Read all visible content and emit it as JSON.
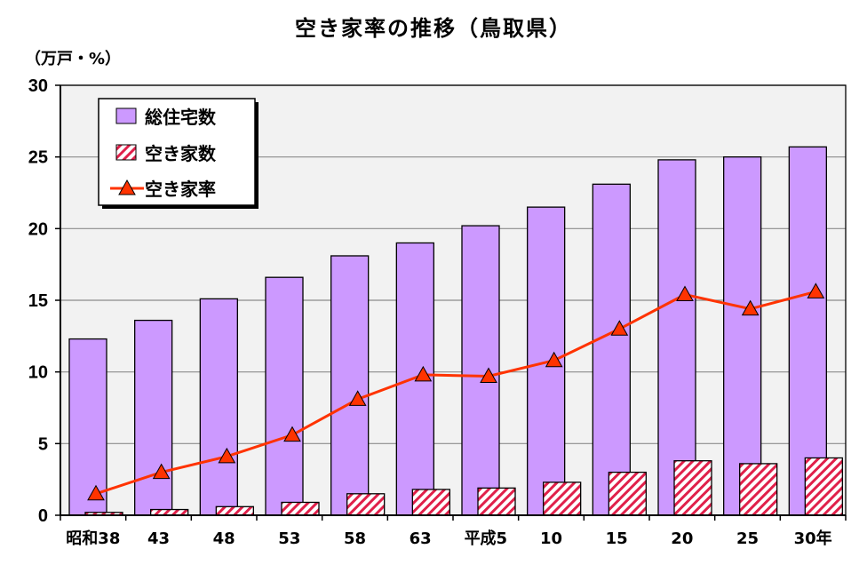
{
  "chart_data": {
    "type": "bar",
    "title": "空き家率の推移（鳥取県）",
    "ylabel": "（万戸・%）",
    "xlabel": "",
    "ylim": [
      0,
      30
    ],
    "yticks": [
      0,
      5,
      10,
      15,
      20,
      25,
      30
    ],
    "grid": true,
    "legend_position": "top-left",
    "categories": [
      "昭和38",
      "43",
      "48",
      "53",
      "58",
      "63",
      "平成5",
      "10",
      "15",
      "20",
      "25",
      "30年"
    ],
    "series": [
      {
        "name": "総住宅数",
        "type": "bar",
        "color": "#cc99ff",
        "values": [
          12.3,
          13.6,
          15.1,
          16.6,
          18.1,
          19.0,
          20.2,
          21.5,
          23.1,
          24.8,
          25.0,
          25.7
        ]
      },
      {
        "name": "空き家数",
        "type": "bar",
        "color": "#e0204a",
        "pattern": "diagonal-hatch",
        "values": [
          0.2,
          0.4,
          0.6,
          0.9,
          1.5,
          1.8,
          1.9,
          2.3,
          3.0,
          3.8,
          3.6,
          4.0
        ]
      },
      {
        "name": "空き家率",
        "type": "line",
        "color": "#ff3300",
        "marker": "triangle",
        "values": [
          1.5,
          3.0,
          4.1,
          5.6,
          8.1,
          9.8,
          9.7,
          10.8,
          13.0,
          15.4,
          14.4,
          15.6
        ]
      }
    ]
  }
}
